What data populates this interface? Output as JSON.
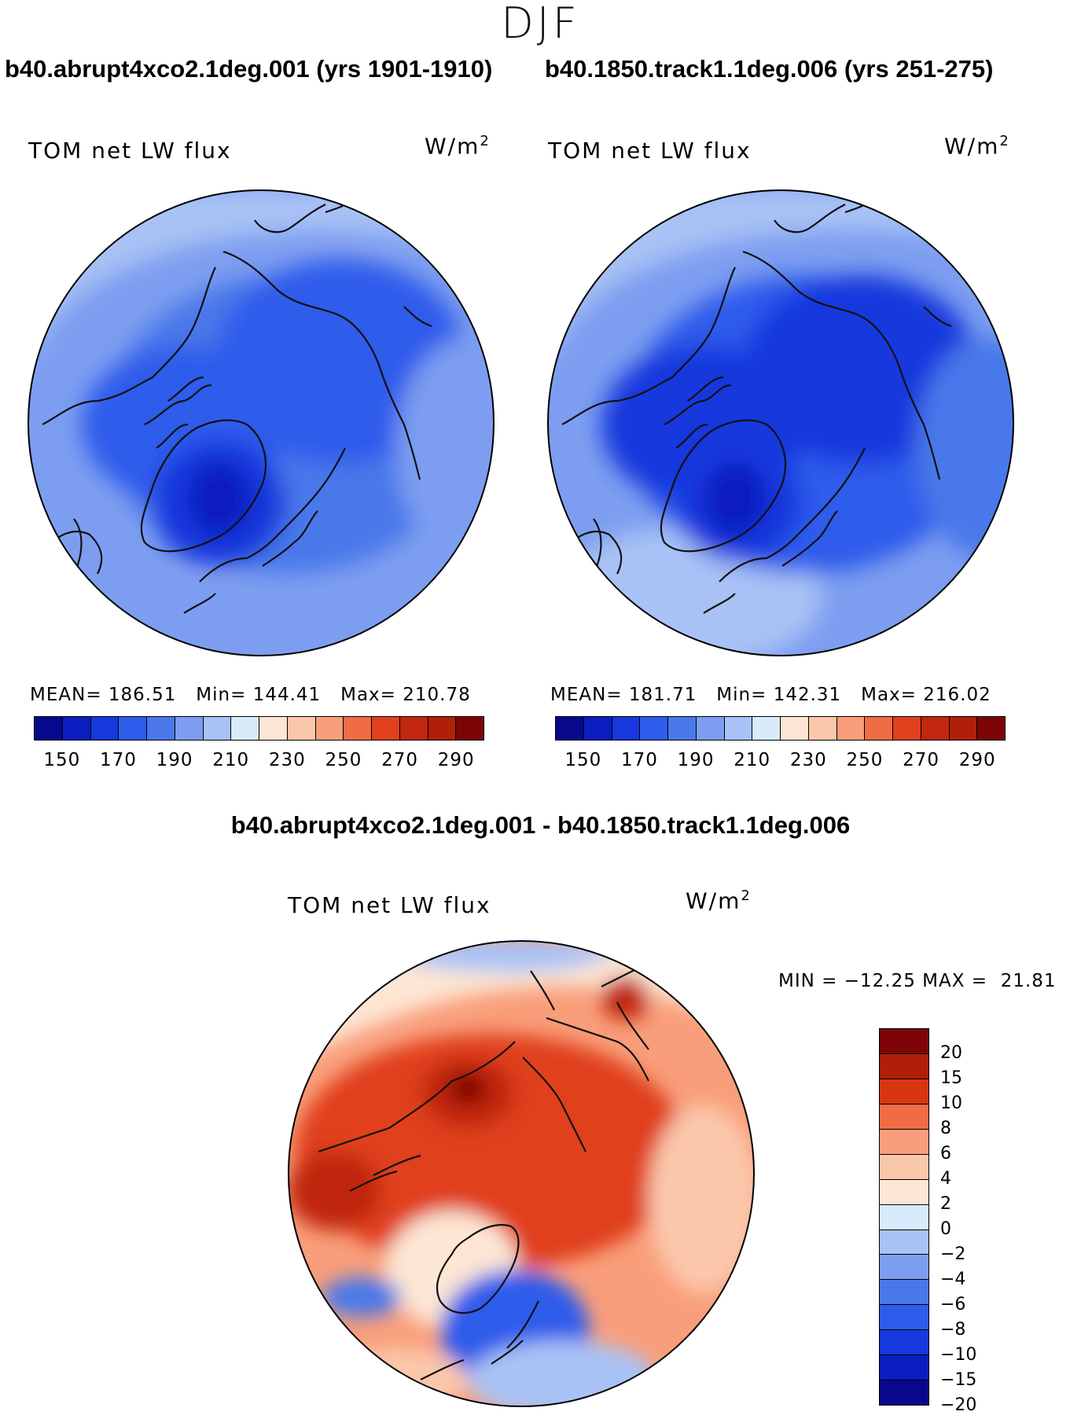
{
  "season": "DJF",
  "panels": [
    {
      "case_title": "b40.abrupt4xco2.1deg.001 (yrs 1901-1910)",
      "label": "TOM net LW flux",
      "units_base": "W/m",
      "units_exp": "2",
      "stats": "MEAN= 186.51   Min= 144.41   Max= 210.78"
    },
    {
      "case_title": "b40.1850.track1.1deg.006 (yrs 251-275)",
      "label": "TOM net LW flux",
      "units_base": "W/m",
      "units_exp": "2",
      "stats": "MEAN= 181.71   Min= 142.31   Max= 216.02"
    }
  ],
  "diff": {
    "title": "b40.abrupt4xco2.1deg.001 - b40.1850.track1.1deg.006",
    "label": "TOM net LW flux",
    "units_base": "W/m",
    "units_exp": "2",
    "stats": "MIN = −12.25 MAX =  21.81"
  },
  "colors": {
    "abs_scale": [
      "#08088c",
      "#0a1ec0",
      "#1739dd",
      "#2e5ceb",
      "#4a78ea",
      "#7d9ef0",
      "#a9c2f5",
      "#d8ebfb",
      "#fde6d4",
      "#fbc7ab",
      "#f99e7a",
      "#f06c45",
      "#e0401e",
      "#c0270e",
      "#b01f08",
      "#7d0505"
    ],
    "diff_scale": [
      "#7d0505",
      "#b01f08",
      "#d83612",
      "#f06c45",
      "#f99e7a",
      "#fbc7ab",
      "#fde6d4",
      "#d8ebfb",
      "#a9c2f5",
      "#7d9ef0",
      "#4a78ea",
      "#2e5ceb",
      "#1739dd",
      "#0a1ec0",
      "#08088c"
    ]
  },
  "chart_data": [
    {
      "type": "heatmap",
      "title": "b40.abrupt4xco2.1deg.001 (yrs 1901-1910)",
      "variable": "TOM net LW flux",
      "units": "W/m2",
      "projection": "polar stereographic (north)",
      "mean": 186.51,
      "min": 144.41,
      "max": 210.78,
      "colorbar_levels": [
        150,
        160,
        170,
        180,
        190,
        200,
        210,
        220,
        230,
        240,
        250,
        260,
        270,
        280,
        290
      ],
      "colorbar_ticks": [
        "150",
        "170",
        "190",
        "210",
        "230",
        "250",
        "270",
        "290"
      ]
    },
    {
      "type": "heatmap",
      "title": "b40.1850.track1.1deg.006 (yrs 251-275)",
      "variable": "TOM net LW flux",
      "units": "W/m2",
      "projection": "polar stereographic (north)",
      "mean": 181.71,
      "min": 142.31,
      "max": 216.02,
      "colorbar_levels": [
        150,
        160,
        170,
        180,
        190,
        200,
        210,
        220,
        230,
        240,
        250,
        260,
        270,
        280,
        290
      ],
      "colorbar_ticks": [
        "150",
        "170",
        "190",
        "210",
        "230",
        "250",
        "270",
        "290"
      ]
    },
    {
      "type": "heatmap",
      "title": "b40.abrupt4xco2.1deg.001 - b40.1850.track1.1deg.006",
      "variable": "TOM net LW flux",
      "units": "W/m2",
      "projection": "polar stereographic (north)",
      "min": -12.25,
      "max": 21.81,
      "colorbar_levels": [
        20,
        15,
        10,
        8,
        6,
        4,
        2,
        0,
        -2,
        -4,
        -6,
        -8,
        -10,
        -15,
        -20
      ],
      "colorbar_ticks": [
        "20",
        "15",
        "10",
        "8",
        "6",
        "4",
        "2",
        "0",
        "−2",
        "−4",
        "−6",
        "−8",
        "−10",
        "−15",
        "−20"
      ]
    }
  ]
}
